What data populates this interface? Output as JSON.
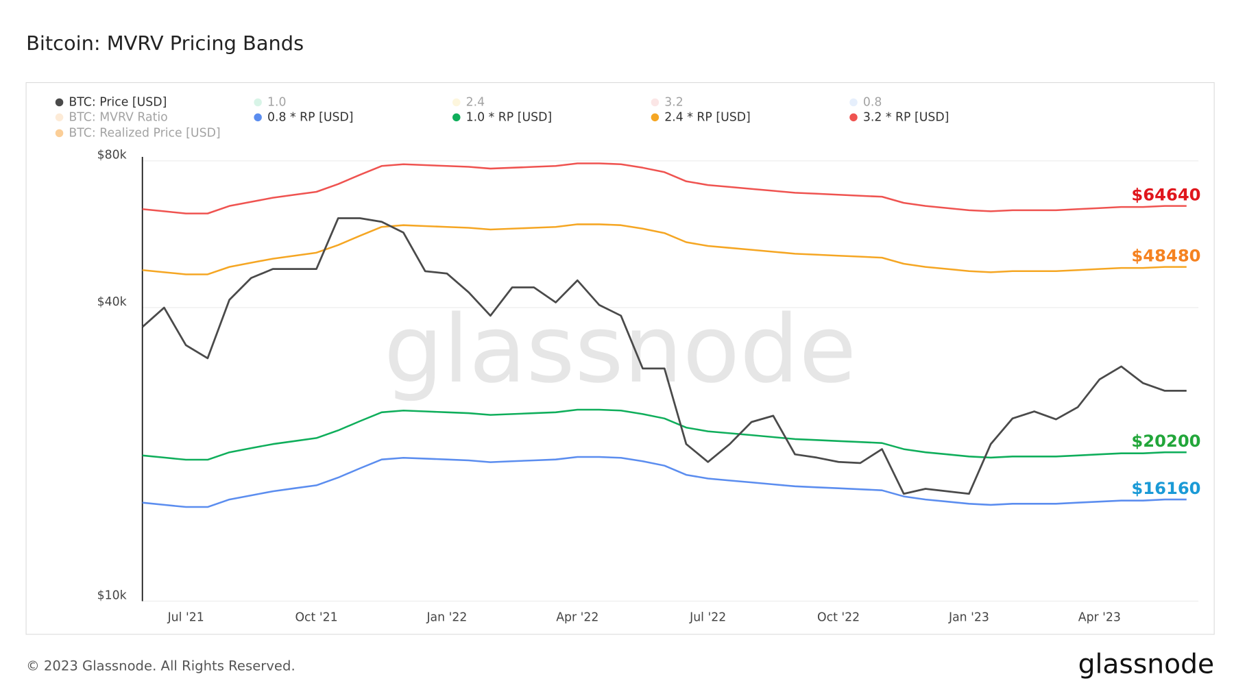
{
  "chart_data": {
    "type": "line",
    "title": "Bitcoin: MVRV Pricing Bands",
    "watermark": "glassnode",
    "log_scale": true,
    "grid": true,
    "legend": "top-left",
    "x": [
      null,
      null,
      "Jul '21",
      null,
      null,
      null,
      null,
      null,
      "Oct '21",
      null,
      null,
      null,
      null,
      null,
      "Jan '22",
      null,
      null,
      null,
      null,
      null,
      "Apr '22",
      null,
      null,
      null,
      null,
      null,
      "Jul '22",
      null,
      null,
      null,
      null,
      null,
      "Oct '22",
      null,
      null,
      null,
      null,
      null,
      "Jan '23",
      null,
      null,
      null,
      null,
      null,
      "Apr '23",
      null,
      null,
      null,
      null
    ],
    "ylim": [
      10000,
      80000
    ],
    "yticks": [
      {
        "value": 10000,
        "label": "$10k"
      },
      {
        "value": 40000,
        "label": "$40k"
      },
      {
        "value": 80000,
        "label": "$80k"
      }
    ],
    "series": [
      {
        "name": "BTC: Price [USD]",
        "color": "#4a4a4a",
        "visible": true,
        "values": [
          36500,
          40000,
          33500,
          31500,
          41500,
          46000,
          48000,
          48000,
          48000,
          61000,
          61000,
          60000,
          57000,
          47500,
          47000,
          43000,
          38500,
          44000,
          44000,
          41000,
          45500,
          40500,
          38500,
          30000,
          30000,
          21000,
          19300,
          21000,
          23300,
          24000,
          20000,
          19700,
          19300,
          19200,
          20500,
          16600,
          17000,
          16800,
          16600,
          21000,
          23700,
          24500,
          23600,
          25000,
          28500,
          30300,
          28000,
          27000,
          27000
        ]
      },
      {
        "name": "1.0",
        "color": "#a8e6c9",
        "visible": false
      },
      {
        "name": "2.4",
        "color": "#fbedb5",
        "visible": false
      },
      {
        "name": "3.2",
        "color": "#f8c9c9",
        "visible": false
      },
      {
        "name": "0.8",
        "color": "#c8dcfa",
        "visible": false
      },
      {
        "name": "BTC: MVRV Ratio",
        "color": "#fbd3a8",
        "visible": false
      },
      {
        "name": "0.8 * RP [USD]",
        "color": "#5b8def",
        "visible": true,
        "end_label": "$16160",
        "end_label_color": "#1a9ad6",
        "values": [
          15920,
          15760,
          15600,
          15600,
          16160,
          16480,
          16800,
          17040,
          17280,
          17920,
          18720,
          19520,
          19680,
          19600,
          19520,
          19440,
          19280,
          19360,
          19440,
          19520,
          19760,
          19760,
          19680,
          19360,
          18960,
          18160,
          17840,
          17680,
          17520,
          17360,
          17200,
          17120,
          17040,
          16960,
          16880,
          16400,
          16160,
          16000,
          15840,
          15760,
          15840,
          15840,
          15840,
          15920,
          16000,
          16080,
          16080,
          16160,
          16160
        ]
      },
      {
        "name": "1.0 * RP [USD]",
        "color": "#0fae5b",
        "visible": true,
        "end_label": "$20200",
        "end_label_color": "#22a63a",
        "values": [
          19900,
          19700,
          19500,
          19500,
          20200,
          20600,
          21000,
          21300,
          21600,
          22400,
          23400,
          24400,
          24600,
          24500,
          24400,
          24300,
          24100,
          24200,
          24300,
          24400,
          24700,
          24700,
          24600,
          24200,
          23700,
          22700,
          22300,
          22100,
          21900,
          21700,
          21500,
          21400,
          21300,
          21200,
          21100,
          20500,
          20200,
          20000,
          19800,
          19700,
          19800,
          19800,
          19800,
          19900,
          20000,
          20100,
          20100,
          20200,
          20200
        ]
      },
      {
        "name": "2.4 * RP [USD]",
        "color": "#f5a623",
        "visible": true,
        "end_label": "$48480",
        "end_label_color": "#f58220",
        "values": [
          47760,
          47280,
          46800,
          46800,
          48480,
          49440,
          50400,
          51120,
          51840,
          53760,
          56160,
          58560,
          59040,
          58800,
          58560,
          58320,
          57840,
          58080,
          58320,
          58560,
          59280,
          59280,
          59040,
          58080,
          56880,
          54480,
          53520,
          53040,
          52560,
          52080,
          51600,
          51360,
          51120,
          50880,
          50640,
          49200,
          48480,
          48000,
          47520,
          47280,
          47520,
          47520,
          47520,
          47760,
          48000,
          48240,
          48240,
          48480,
          48480
        ]
      },
      {
        "name": "3.2 * RP [USD]",
        "color": "#ef5350",
        "visible": true,
        "end_label": "$64640",
        "end_label_color": "#e0161c",
        "values": [
          63680,
          63040,
          62400,
          62400,
          64640,
          65920,
          67200,
          68160,
          69120,
          71680,
          74880,
          78080,
          78720,
          78400,
          78080,
          77760,
          77120,
          77440,
          77760,
          78080,
          79040,
          79040,
          78720,
          77440,
          75840,
          72640,
          71360,
          70720,
          70080,
          69440,
          68800,
          68480,
          68160,
          67840,
          67520,
          65600,
          64640,
          64000,
          63360,
          63040,
          63360,
          63360,
          63360,
          63680,
          64000,
          64320,
          64320,
          64640,
          64640
        ]
      },
      {
        "name": "BTC: Realized Price [USD]",
        "color": "#f7931a",
        "visible": false
      }
    ]
  },
  "footer": {
    "copyright": "© 2023 Glassnode. All Rights Reserved.",
    "logo": "glassnode"
  }
}
